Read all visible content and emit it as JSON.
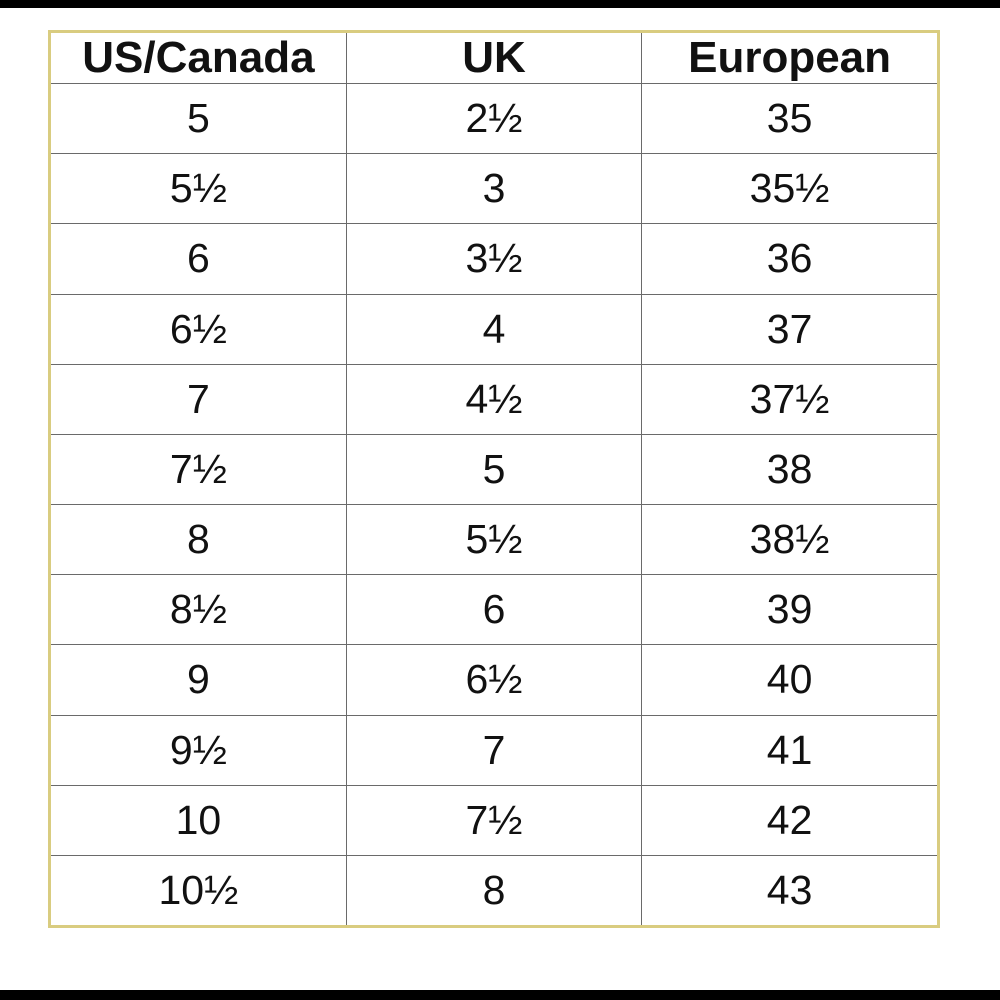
{
  "table": {
    "header": [
      "US/Canada",
      "UK",
      "European"
    ],
    "rows": [
      [
        "5",
        "2½",
        "35"
      ],
      [
        "5½",
        "3",
        "35½"
      ],
      [
        "6",
        "3½",
        "36"
      ],
      [
        "6½",
        "4",
        "37"
      ],
      [
        "7",
        "4½",
        "37½"
      ],
      [
        "7½",
        "5",
        "38"
      ],
      [
        "8",
        "5½",
        "38½"
      ],
      [
        "8½",
        "6",
        "39"
      ],
      [
        "9",
        "6½",
        "40"
      ],
      [
        "9½",
        "7",
        "41"
      ],
      [
        "10",
        "7½",
        "42"
      ],
      [
        "10½",
        "8",
        "43"
      ]
    ]
  }
}
